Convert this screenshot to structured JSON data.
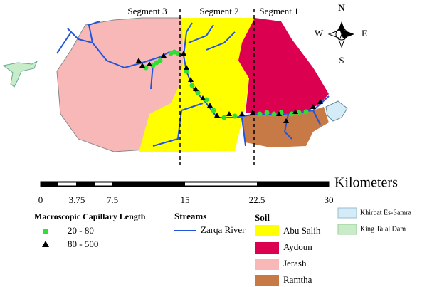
{
  "segments": [
    "Segment 3",
    "Segment 2",
    "Segment 1"
  ],
  "compass": {
    "north": "N",
    "west": "W",
    "east": "E",
    "south": "S"
  },
  "scale": {
    "unit": "Kilometers",
    "labels": [
      "0",
      "3.75",
      "7.5",
      "15",
      "22.5",
      "30"
    ]
  },
  "legend": {
    "capillary": {
      "title": "Macroscopic Capillary Length",
      "items": [
        "20 - 80",
        "80 - 500"
      ]
    },
    "streams": {
      "title": "Streams",
      "items": [
        "Zarqa River"
      ]
    },
    "soil": {
      "title": "Soil",
      "items": [
        "Abu Salih",
        "Aydoun",
        "Jerash",
        "Ramtha"
      ]
    },
    "water": {
      "items": [
        "Khirbat Es-Samra",
        "King Talal Dam"
      ]
    }
  }
}
